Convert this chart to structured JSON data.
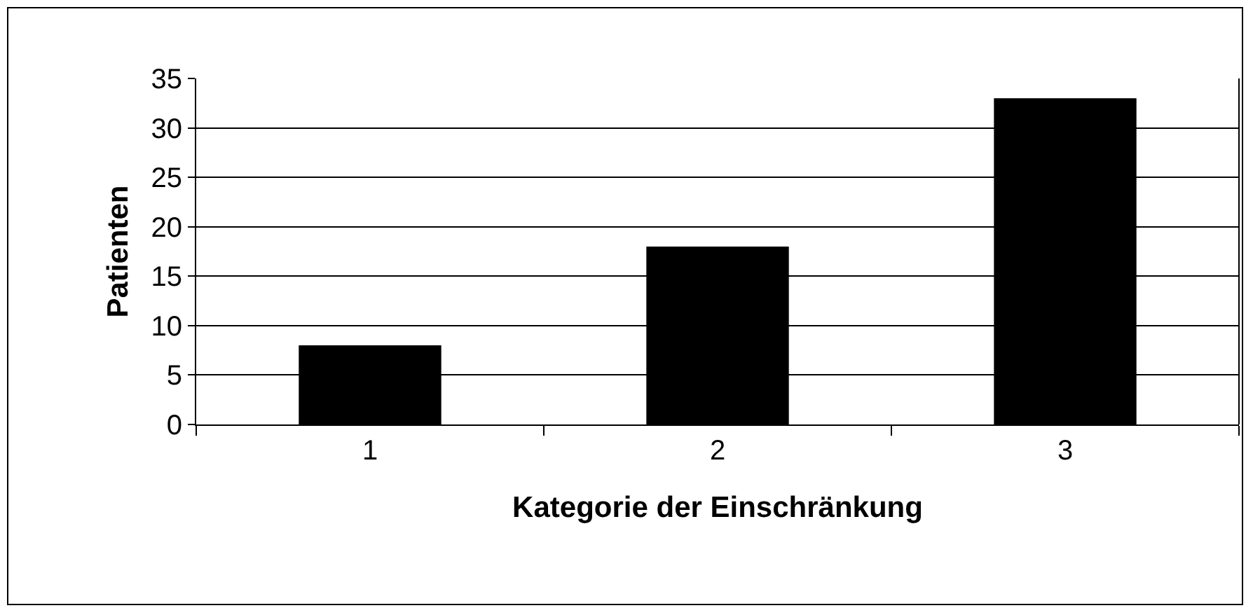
{
  "chart_data": {
    "type": "bar",
    "xlabel": "Kategorie der Einschränkung",
    "ylabel": "Patienten",
    "categories": [
      "1",
      "2",
      "3"
    ],
    "values": [
      8,
      18,
      33
    ],
    "color": "#000000",
    "ylim": [
      0,
      35
    ],
    "yticks": [
      0,
      5,
      10,
      15,
      20,
      25,
      30,
      35
    ],
    "grid": "y",
    "legend": false
  }
}
